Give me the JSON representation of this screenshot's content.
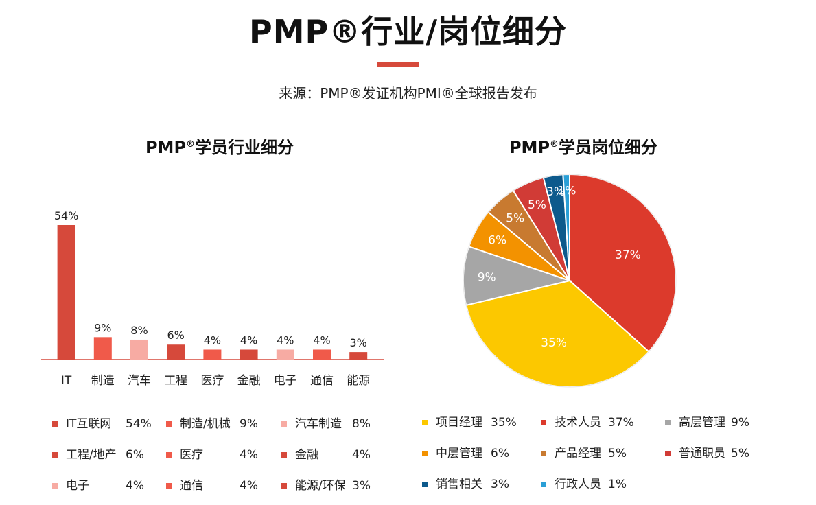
{
  "page": {
    "title": "PMP®行业/岗位细分",
    "source": "来源：PMP®发证机构PMI®全球报告发布",
    "accent_color": "#d6493b"
  },
  "chart_data": [
    {
      "type": "bar",
      "title_main": "PMP",
      "title_sup": "®",
      "title_rest": "学员行业细分",
      "categories": [
        "IT",
        "制造",
        "汽车",
        "工程",
        "医疗",
        "金融",
        "电子",
        "通信",
        "能源"
      ],
      "values": [
        54,
        9,
        8,
        6,
        4,
        4,
        4,
        4,
        3
      ],
      "data_labels": [
        "54%",
        "9%",
        "8%",
        "6%",
        "4%",
        "4%",
        "4%",
        "4%",
        "3%"
      ],
      "colors": [
        "#d6493b",
        "#f05a4a",
        "#f7aba3",
        "#d6493b",
        "#f05a4a",
        "#d6493b",
        "#f7aba3",
        "#f05a4a",
        "#d6493b"
      ],
      "ylim": [
        0,
        54
      ],
      "grid": false,
      "legend": [
        {
          "label": "IT互联网",
          "value": "54%",
          "color": "#d6493b"
        },
        {
          "label": "制造/机械",
          "value": "9%",
          "color": "#f05a4a"
        },
        {
          "label": "汽车制造",
          "value": "8%",
          "color": "#f7aba3"
        },
        {
          "label": "工程/地产",
          "value": "6%",
          "color": "#d6493b"
        },
        {
          "label": "医疗",
          "value": "4%",
          "color": "#f05a4a"
        },
        {
          "label": "金融",
          "value": "4%",
          "color": "#d6493b"
        },
        {
          "label": "电子",
          "value": "4%",
          "color": "#f7aba3"
        },
        {
          "label": "通信",
          "value": "4%",
          "color": "#f05a4a"
        },
        {
          "label": "能源/环保",
          "value": "3%",
          "color": "#d6493b"
        }
      ]
    },
    {
      "type": "pie",
      "title_main": "PMP",
      "title_sup": "®",
      "title_rest": "学员岗位细分",
      "slices": [
        {
          "name": "技术人员",
          "value": 37,
          "label": "37%",
          "color": "#dc3a2c"
        },
        {
          "name": "项目经理",
          "value": 35,
          "label": "35%",
          "color": "#fcc800"
        },
        {
          "name": "高层管理",
          "value": 9,
          "label": "9%",
          "color": "#a6a6a6"
        },
        {
          "name": "中层管理",
          "value": 6,
          "label": "6%",
          "color": "#f39200"
        },
        {
          "name": "产品经理",
          "value": 5,
          "label": "5%",
          "color": "#c87a30"
        },
        {
          "name": "普通职员",
          "value": 5,
          "label": "5%",
          "color": "#d13b36"
        },
        {
          "name": "销售相关",
          "value": 3,
          "label": "3%",
          "color": "#0d5a8c"
        },
        {
          "name": "行政人员",
          "value": 1,
          "label": "1%",
          "color": "#2a9fd6"
        }
      ],
      "legend": [
        {
          "label": "项目经理",
          "value": "35%",
          "color": "#fcc800"
        },
        {
          "label": "技术人员",
          "value": "37%",
          "color": "#dc3a2c"
        },
        {
          "label": "高层管理",
          "value": "9%",
          "color": "#a6a6a6"
        },
        {
          "label": "中层管理",
          "value": "6%",
          "color": "#f39200"
        },
        {
          "label": "产品经理",
          "value": "5%",
          "color": "#c87a30"
        },
        {
          "label": "普通职员",
          "value": "5%",
          "color": "#d13b36"
        },
        {
          "label": "销售相关",
          "value": "3%",
          "color": "#0d5a8c"
        },
        {
          "label": "行政人员",
          "value": "1%",
          "color": "#2a9fd6"
        }
      ]
    }
  ]
}
